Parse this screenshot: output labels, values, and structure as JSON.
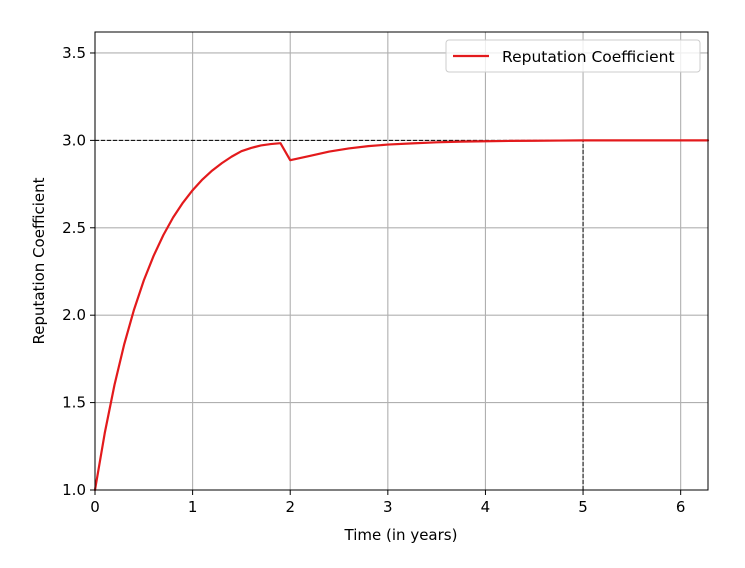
{
  "chart_data": {
    "type": "line",
    "title": "",
    "xlabel": "Time (in years)",
    "ylabel": "Reputation Coefficient",
    "xlim": [
      0,
      6.28
    ],
    "ylim": [
      1.0,
      3.62
    ],
    "xticks": [
      0,
      1,
      2,
      3,
      4,
      5,
      6
    ],
    "xtick_labels": [
      "0",
      "1",
      "2",
      "3",
      "4",
      "5",
      "6"
    ],
    "yticks": [
      1.0,
      1.5,
      2.0,
      2.5,
      3.0,
      3.5
    ],
    "ytick_labels": [
      "1.0",
      "1.5",
      "2.0",
      "2.5",
      "3.0",
      "3.5"
    ],
    "grid": true,
    "legend_position": "top-right",
    "series": [
      {
        "name": "Reputation Coefficient",
        "color": "#e31a1c",
        "x": [
          0,
          0.1,
          0.2,
          0.3,
          0.4,
          0.5,
          0.6,
          0.7,
          0.8,
          0.9,
          1.0,
          1.1,
          1.2,
          1.3,
          1.4,
          1.5,
          1.6,
          1.7,
          1.8,
          1.9,
          2.0,
          2.2,
          2.4,
          2.6,
          2.8,
          3.0,
          3.25,
          3.5,
          3.75,
          4.0,
          4.25,
          4.5,
          4.75,
          5.0,
          5.5,
          6.0,
          6.28
        ],
        "y": [
          1.0,
          1.326,
          1.602,
          1.835,
          2.032,
          2.199,
          2.339,
          2.458,
          2.559,
          2.643,
          2.715,
          2.776,
          2.827,
          2.87,
          2.907,
          2.938,
          2.957,
          2.971,
          2.979,
          2.984,
          2.887,
          2.911,
          2.936,
          2.954,
          2.967,
          2.976,
          2.983,
          2.989,
          2.993,
          2.995,
          2.997,
          2.998,
          2.999,
          3.0,
          3.0,
          3.0,
          3.0
        ]
      }
    ],
    "reference_lines": [
      {
        "orientation": "horizontal",
        "value": 3.0,
        "from": 0,
        "to": 6.28,
        "color": "#000000",
        "style": "dashed"
      },
      {
        "orientation": "vertical",
        "value": 5,
        "from": 1.0,
        "to": 3.0,
        "color": "#000000",
        "style": "dashed"
      }
    ]
  }
}
